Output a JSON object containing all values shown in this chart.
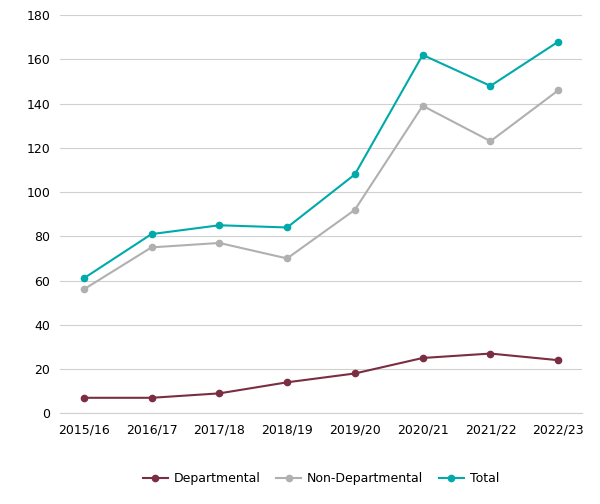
{
  "x_labels": [
    "2015/16",
    "2016/17",
    "2017/18",
    "2018/19",
    "2019/20",
    "2020/21",
    "2021/22",
    "2022/23"
  ],
  "departmental": [
    7,
    7,
    9,
    14,
    18,
    25,
    27,
    24
  ],
  "non_departmental": [
    56,
    75,
    77,
    70,
    92,
    139,
    123,
    146
  ],
  "total": [
    61,
    81,
    85,
    84,
    108,
    162,
    148,
    168
  ],
  "departmental_color": "#7b2d42",
  "non_departmental_color": "#b0b0b0",
  "total_color": "#00aaaa",
  "background_color": "#ffffff",
  "plot_bg_color": "#ffffff",
  "ylim": [
    0,
    180
  ],
  "yticks": [
    0,
    20,
    40,
    60,
    80,
    100,
    120,
    140,
    160,
    180
  ],
  "legend_labels": [
    "Departmental",
    "Non-Departmental",
    "Total"
  ],
  "marker": "o",
  "linewidth": 1.5,
  "markersize": 4.5,
  "grid_color": "#d0d0d0",
  "tick_fontsize": 9,
  "legend_fontsize": 9
}
